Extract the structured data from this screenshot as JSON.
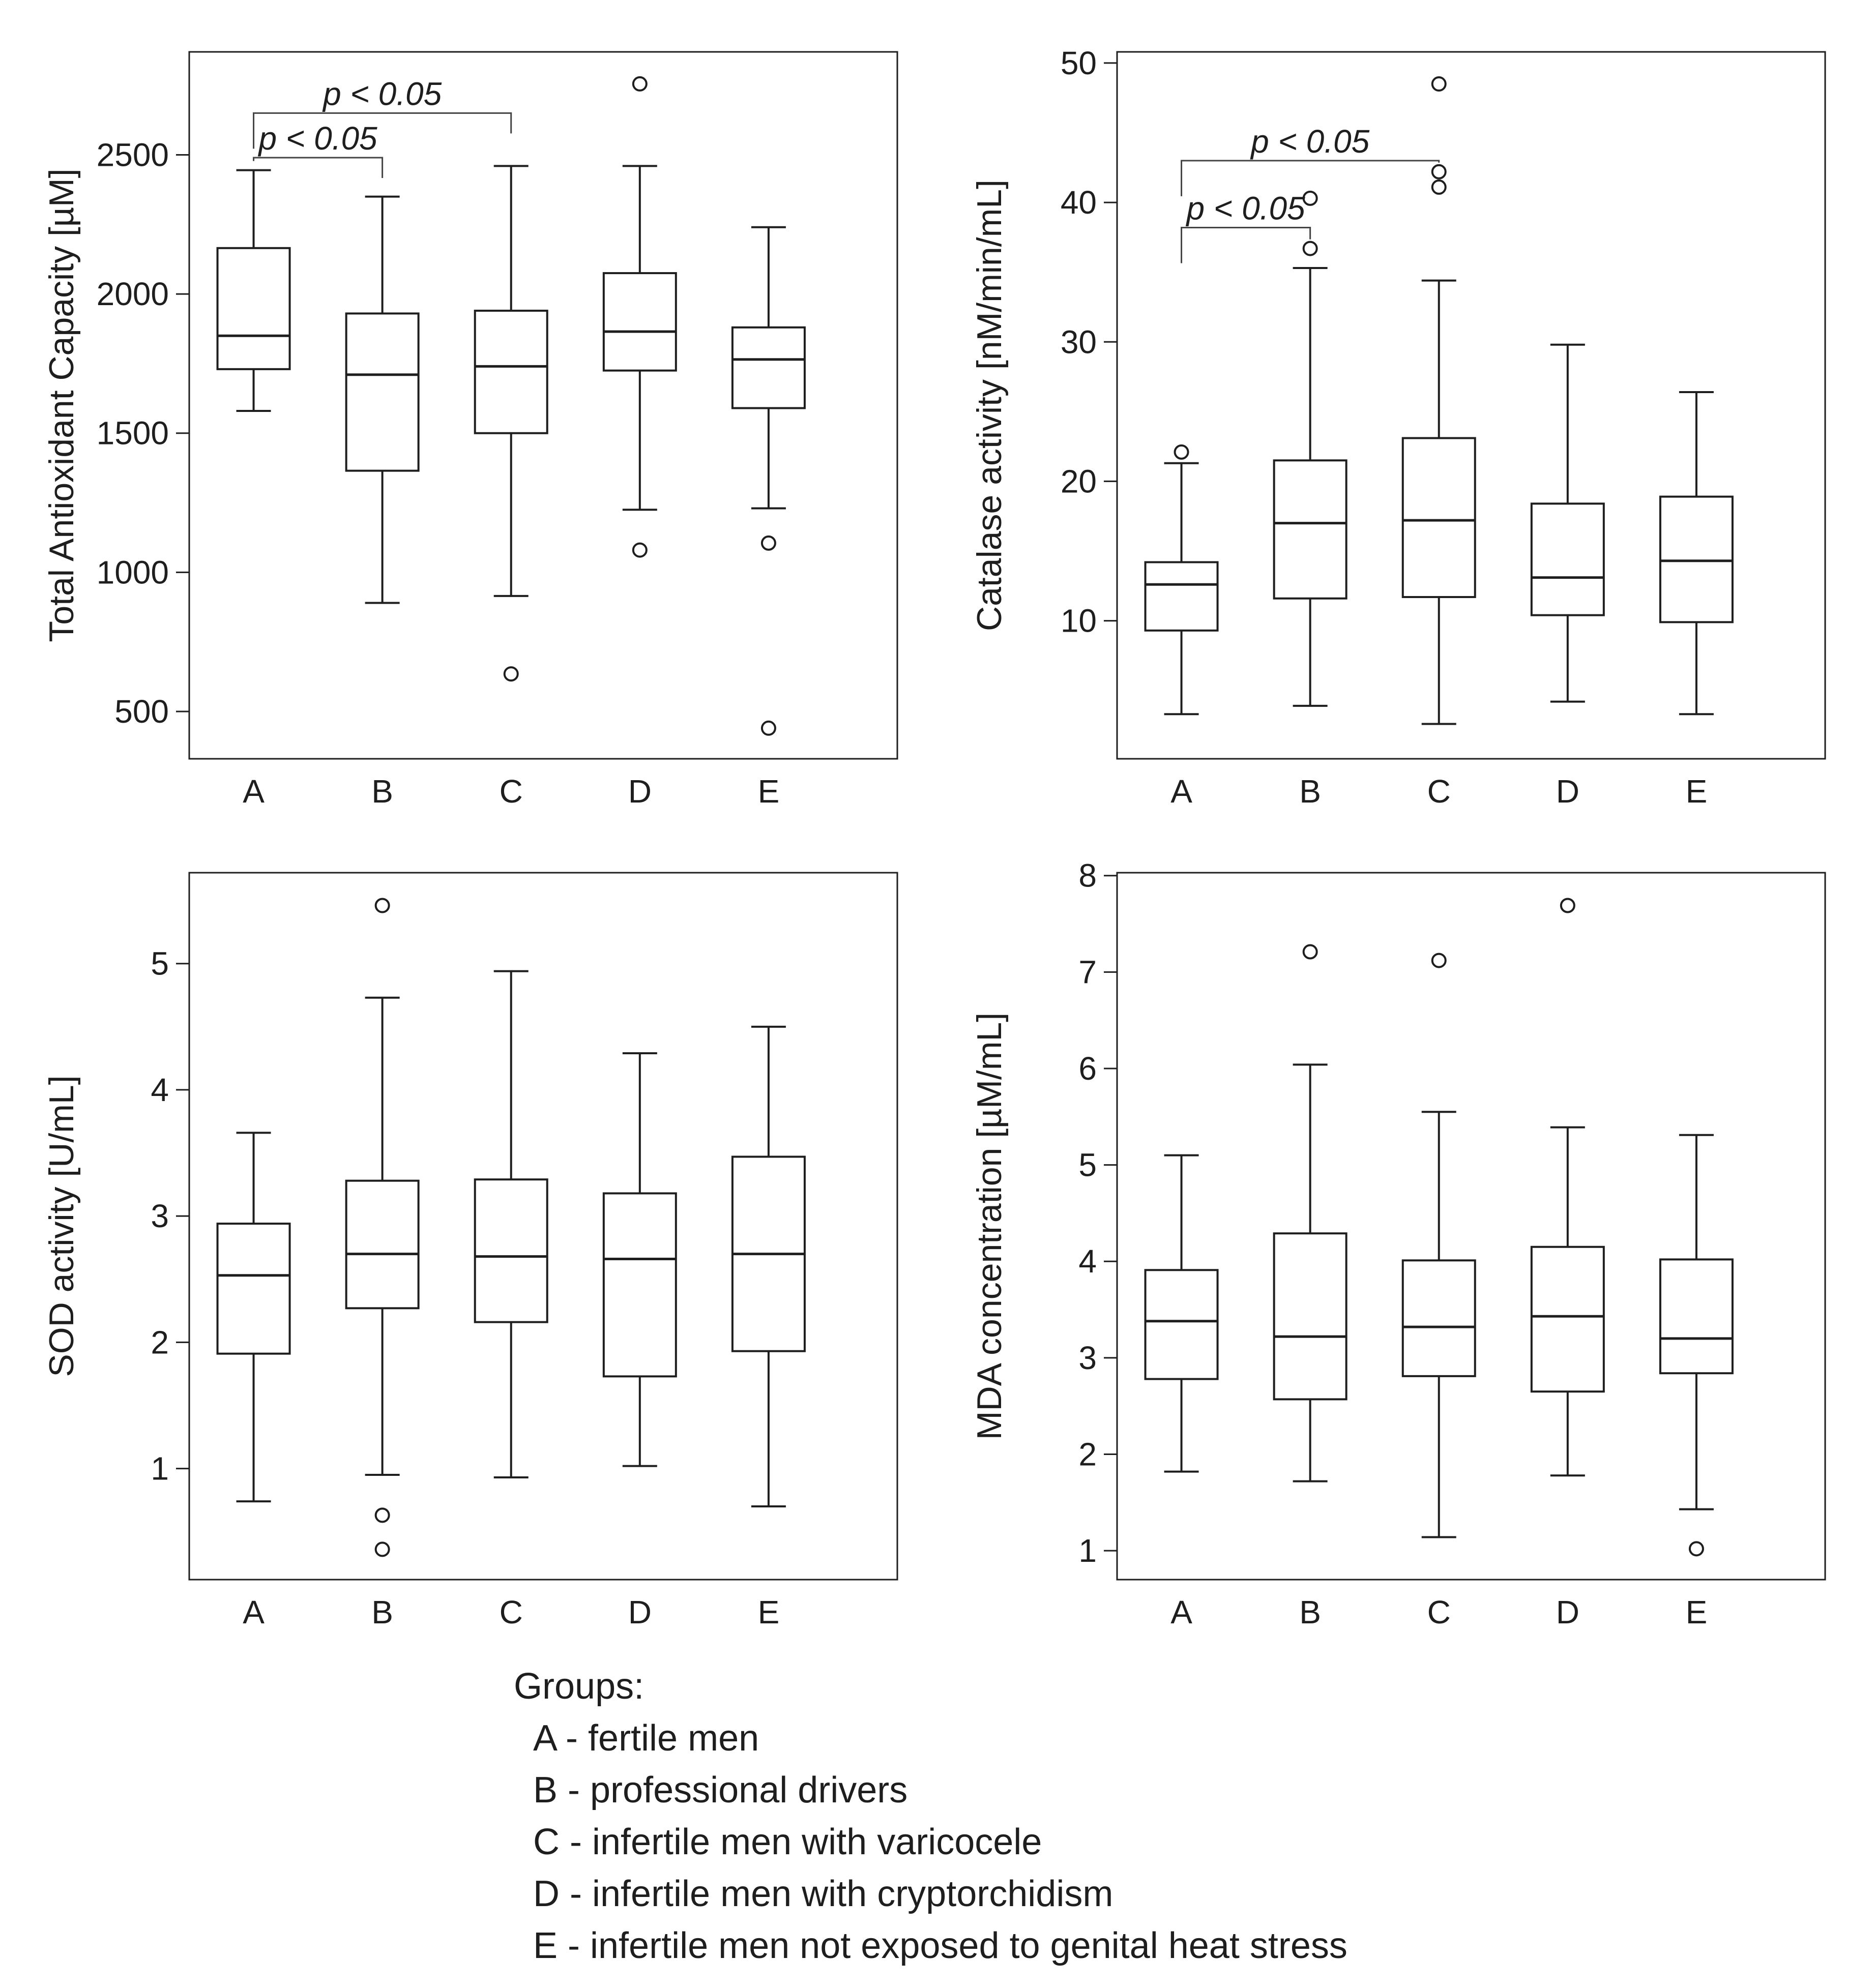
{
  "chart_data": [
    {
      "type": "box",
      "ylabel": "Total Antioxidant Capacity [µM]",
      "xlabel": "",
      "categories": [
        "A",
        "B",
        "C",
        "D",
        "E"
      ],
      "ylim": [
        330,
        2870
      ],
      "yticks": [
        500,
        1000,
        1500,
        2000,
        2500
      ],
      "boxes": [
        {
          "group": "A",
          "whisker_low": 1580,
          "q1": 1730,
          "median": 1850,
          "q3": 2165,
          "whisker_high": 2445,
          "outliers": []
        },
        {
          "group": "B",
          "whisker_low": 890,
          "q1": 1365,
          "median": 1710,
          "q3": 1930,
          "whisker_high": 2350,
          "outliers": []
        },
        {
          "group": "C",
          "whisker_low": 915,
          "q1": 1500,
          "median": 1740,
          "q3": 1940,
          "whisker_high": 2460,
          "outliers": [
            635
          ]
        },
        {
          "group": "D",
          "whisker_low": 1225,
          "q1": 1725,
          "median": 1865,
          "q3": 2075,
          "whisker_high": 2460,
          "outliers": [
            1080,
            2755
          ]
        },
        {
          "group": "E",
          "whisker_low": 1230,
          "q1": 1590,
          "median": 1765,
          "q3": 1880,
          "whisker_high": 2240,
          "outliers": [
            440,
            1105
          ]
        }
      ],
      "significance": [
        {
          "from": "A",
          "to": "B",
          "label": "p < 0.05",
          "level": 2490
        },
        {
          "from": "A",
          "to": "C",
          "label": "p < 0.05",
          "level": 2650
        }
      ]
    },
    {
      "type": "box",
      "ylabel": "Catalase activity [nM/min/mL]",
      "xlabel": "",
      "categories": [
        "A",
        "B",
        "C",
        "D",
        "E"
      ],
      "ylim": [
        0.1,
        50.8
      ],
      "yticks": [
        10,
        20,
        30,
        40,
        50
      ],
      "boxes": [
        {
          "group": "A",
          "whisker_low": 3.3,
          "q1": 9.3,
          "median": 12.6,
          "q3": 14.2,
          "whisker_high": 21.3,
          "outliers": [
            22.1
          ]
        },
        {
          "group": "B",
          "whisker_low": 3.9,
          "q1": 11.6,
          "median": 17.0,
          "q3": 21.5,
          "whisker_high": 35.3,
          "outliers": [
            36.7,
            40.3
          ]
        },
        {
          "group": "C",
          "whisker_low": 2.6,
          "q1": 11.7,
          "median": 17.2,
          "q3": 23.1,
          "whisker_high": 34.4,
          "outliers": [
            41.1,
            42.2,
            48.5
          ]
        },
        {
          "group": "D",
          "whisker_low": 4.2,
          "q1": 10.4,
          "median": 13.1,
          "q3": 18.4,
          "whisker_high": 29.8,
          "outliers": []
        },
        {
          "group": "E",
          "whisker_low": 3.3,
          "q1": 9.9,
          "median": 14.3,
          "q3": 18.9,
          "whisker_high": 26.4,
          "outliers": []
        }
      ],
      "significance": [
        {
          "from": "A",
          "to": "B",
          "label": "p < 0.05",
          "level": 38.2
        },
        {
          "from": "A",
          "to": "C",
          "label": "p < 0.05",
          "level": 43.0
        }
      ]
    },
    {
      "type": "box",
      "ylabel": "SOD activity [U/mL]",
      "xlabel": "",
      "categories": [
        "A",
        "B",
        "C",
        "D",
        "E"
      ],
      "ylim": [
        0.12,
        5.72
      ],
      "yticks": [
        1,
        2,
        3,
        4,
        5
      ],
      "boxes": [
        {
          "group": "A",
          "whisker_low": 0.74,
          "q1": 1.91,
          "median": 2.53,
          "q3": 2.94,
          "whisker_high": 3.66,
          "outliers": []
        },
        {
          "group": "B",
          "whisker_low": 0.95,
          "q1": 2.27,
          "median": 2.7,
          "q3": 3.28,
          "whisker_high": 4.73,
          "outliers": [
            0.36,
            0.63,
            5.46
          ]
        },
        {
          "group": "C",
          "whisker_low": 0.93,
          "q1": 2.16,
          "median": 2.68,
          "q3": 3.29,
          "whisker_high": 4.94,
          "outliers": []
        },
        {
          "group": "D",
          "whisker_low": 1.02,
          "q1": 1.73,
          "median": 2.66,
          "q3": 3.18,
          "whisker_high": 4.29,
          "outliers": []
        },
        {
          "group": "E",
          "whisker_low": 0.7,
          "q1": 1.93,
          "median": 2.7,
          "q3": 3.47,
          "whisker_high": 4.5,
          "outliers": []
        }
      ],
      "significance": []
    },
    {
      "type": "box",
      "ylabel": "MDA concentration [µM/mL]",
      "xlabel": "",
      "categories": [
        "A",
        "B",
        "C",
        "D",
        "E"
      ],
      "ylim": [
        0.7,
        8.03
      ],
      "yticks": [
        1,
        2,
        3,
        4,
        5,
        6,
        7,
        8
      ],
      "boxes": [
        {
          "group": "A",
          "whisker_low": 1.82,
          "q1": 2.78,
          "median": 3.38,
          "q3": 3.91,
          "whisker_high": 5.1,
          "outliers": []
        },
        {
          "group": "B",
          "whisker_low": 1.72,
          "q1": 2.57,
          "median": 3.22,
          "q3": 4.29,
          "whisker_high": 6.04,
          "outliers": [
            7.21
          ]
        },
        {
          "group": "C",
          "whisker_low": 1.14,
          "q1": 2.81,
          "median": 3.32,
          "q3": 4.01,
          "whisker_high": 5.55,
          "outliers": [
            7.12
          ]
        },
        {
          "group": "D",
          "whisker_low": 1.78,
          "q1": 2.65,
          "median": 3.43,
          "q3": 4.15,
          "whisker_high": 5.39,
          "outliers": [
            7.69
          ]
        },
        {
          "group": "E",
          "whisker_low": 1.43,
          "q1": 2.84,
          "median": 3.2,
          "q3": 4.02,
          "whisker_high": 5.31,
          "outliers": [
            1.02
          ]
        }
      ],
      "significance": []
    }
  ],
  "legend": {
    "title": "Groups:",
    "items": [
      "A - fertile men",
      "B - professional drivers",
      "C - infertile men with varicocele",
      "D - infertile men with cryptorchidism",
      "E - infertile men not exposed to genital heat stress"
    ]
  }
}
